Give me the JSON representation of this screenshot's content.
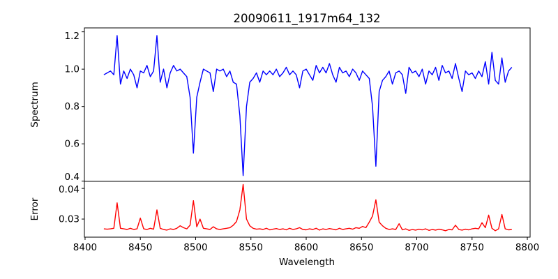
{
  "chart_data": {
    "type": "line",
    "title": "20090611_1917m64_132",
    "xlabel": "Wavelength",
    "xlim": [
      8399.4,
      8802.5
    ],
    "x_ticks": [
      8400,
      8450,
      8500,
      8550,
      8600,
      8650,
      8700,
      8750,
      8800
    ],
    "x_tick_labels": [
      "8400",
      "8450",
      "8500",
      "8550",
      "8600",
      "8650",
      "8700",
      "8750",
      "8800"
    ],
    "x_start": 8417,
    "x_step": 3,
    "grid": false,
    "panels": [
      {
        "name": "spectrum",
        "ylabel": "Spectrum",
        "ylim": [
          0.399,
          1.221
        ],
        "y_ticks": [
          0.4,
          0.6,
          0.8,
          1.0,
          1.2
        ],
        "y_tick_labels": [
          "0.4",
          "0.6",
          "0.8",
          "1.0",
          "1.2"
        ],
        "color": "#0000ff",
        "values": [
          0.97,
          0.98,
          0.99,
          0.97,
          1.18,
          0.92,
          0.99,
          0.95,
          1.0,
          0.97,
          0.9,
          0.99,
          0.98,
          1.02,
          0.96,
          0.99,
          1.18,
          0.93,
          1.0,
          0.9,
          0.98,
          1.02,
          0.99,
          1.0,
          0.98,
          0.96,
          0.85,
          0.55,
          0.85,
          0.93,
          1.0,
          0.99,
          0.98,
          0.88,
          1.0,
          0.99,
          1.0,
          0.96,
          0.99,
          0.93,
          0.92,
          0.75,
          0.43,
          0.8,
          0.93,
          0.95,
          0.98,
          0.93,
          0.99,
          0.97,
          0.99,
          0.97,
          1.0,
          0.96,
          0.98,
          1.01,
          0.97,
          0.99,
          0.97,
          0.9,
          0.99,
          1.0,
          0.97,
          0.94,
          1.02,
          0.98,
          1.01,
          0.98,
          1.03,
          0.97,
          0.93,
          1.01,
          0.98,
          0.99,
          0.96,
          1.0,
          0.98,
          0.94,
          0.99,
          0.97,
          0.95,
          0.8,
          0.48,
          0.88,
          0.94,
          0.96,
          0.99,
          0.92,
          0.98,
          0.99,
          0.97,
          0.87,
          1.01,
          0.98,
          0.99,
          0.96,
          1.0,
          0.92,
          0.99,
          0.97,
          1.01,
          0.94,
          1.02,
          0.98,
          0.99,
          0.95,
          1.03,
          0.95,
          0.88,
          0.99,
          0.97,
          0.98,
          0.95,
          0.99,
          0.96,
          1.04,
          0.92,
          1.09,
          0.94,
          0.92,
          1.06,
          0.93,
          0.99,
          1.01
        ]
      },
      {
        "name": "error",
        "ylabel": "Error",
        "ylim": [
          0.0241,
          0.0423
        ],
        "y_ticks": [
          0.03,
          0.04
        ],
        "y_tick_labels": [
          "0.03",
          "0.04"
        ],
        "color": "#ff0000",
        "values": [
          0.0268,
          0.0267,
          0.0268,
          0.027,
          0.0353,
          0.027,
          0.0268,
          0.0266,
          0.027,
          0.0266,
          0.0268,
          0.0303,
          0.0268,
          0.0266,
          0.027,
          0.0267,
          0.033,
          0.027,
          0.0266,
          0.0264,
          0.0268,
          0.0266,
          0.027,
          0.0278,
          0.0272,
          0.0268,
          0.028,
          0.036,
          0.0275,
          0.03,
          0.027,
          0.0268,
          0.0266,
          0.0275,
          0.0268,
          0.0266,
          0.0268,
          0.027,
          0.0272,
          0.028,
          0.0292,
          0.033,
          0.0413,
          0.03,
          0.0278,
          0.027,
          0.0267,
          0.0268,
          0.0266,
          0.027,
          0.0265,
          0.0267,
          0.0269,
          0.0266,
          0.0268,
          0.0265,
          0.027,
          0.0266,
          0.0268,
          0.0272,
          0.0266,
          0.0265,
          0.0268,
          0.0266,
          0.027,
          0.0264,
          0.0268,
          0.0266,
          0.0269,
          0.0267,
          0.0265,
          0.027,
          0.0266,
          0.0268,
          0.027,
          0.0267,
          0.0272,
          0.027,
          0.0276,
          0.0272,
          0.029,
          0.031,
          0.0363,
          0.029,
          0.0278,
          0.027,
          0.0266,
          0.0268,
          0.0266,
          0.0285,
          0.0265,
          0.0268,
          0.0263,
          0.0266,
          0.0264,
          0.0267,
          0.0265,
          0.0268,
          0.0263,
          0.0266,
          0.0264,
          0.0267,
          0.0265,
          0.0262,
          0.0266,
          0.0265,
          0.028,
          0.0266,
          0.0264,
          0.0267,
          0.0265,
          0.0268,
          0.027,
          0.0268,
          0.0288,
          0.0272,
          0.0313,
          0.027,
          0.0262,
          0.0268,
          0.0315,
          0.0268,
          0.0265,
          0.0266
        ]
      }
    ]
  }
}
